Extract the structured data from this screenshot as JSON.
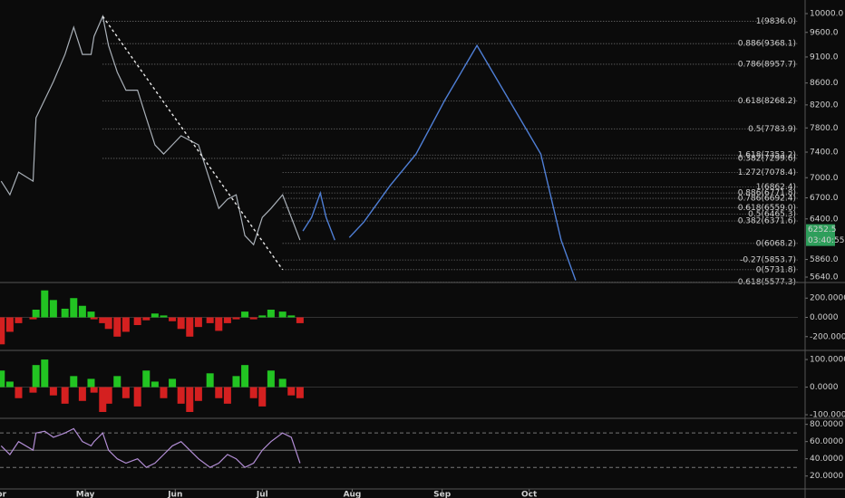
{
  "chart_data": [
    {
      "type": "line",
      "log": true,
      "ylim": [
        5574,
        10300
      ],
      "xlim": [
        0.6,
        275.6
      ],
      "yticks": [
        {
          "value": 10000,
          "label": "10000.0"
        },
        {
          "value": 9600,
          "label": "9600.0"
        },
        {
          "value": 9100,
          "label": "9100.0"
        },
        {
          "value": 8600,
          "label": "8600.0"
        },
        {
          "value": 8200,
          "label": "8200.0"
        },
        {
          "value": 7800,
          "label": "7800.0"
        },
        {
          "value": 7400,
          "label": "7400.0"
        },
        {
          "value": 7000,
          "label": "7000.0"
        },
        {
          "value": 6700,
          "label": "6700.0"
        },
        {
          "value": 6400,
          "label": "6400.0"
        },
        {
          "value": 5860,
          "label": "5860.0"
        },
        {
          "value": 5640,
          "label": "5640.0"
        }
      ],
      "series": [
        {
          "color": "#a9b0b8",
          "x": [
            1,
            4,
            7,
            12,
            13,
            16,
            19,
            23,
            26,
            29,
            32,
            33,
            36,
            38,
            41,
            44,
            48,
            51,
            54,
            57,
            60,
            63,
            66,
            69,
            73,
            76,
            79,
            82,
            85,
            88,
            91,
            94,
            98,
            101,
            104
          ],
          "values": [
            6947,
            6745,
            7085,
            6947,
            7974,
            8294,
            8626,
            9151,
            9708,
            9151,
            9151,
            9516,
            9941,
            9330,
            8806,
            8466,
            8466,
            7974,
            7517,
            7370,
            7517,
            7667,
            7592,
            7517,
            6947,
            6548,
            6680,
            6745,
            6172,
            6052,
            6421,
            6548,
            6745,
            6421,
            6112
          ]
        },
        {
          "color": "#e8e8e8",
          "dash": true,
          "x": [
            36,
            98
          ],
          "values": [
            9941,
            5731.8
          ]
        },
        {
          "color": "#4f7fd6",
          "x": [
            105,
            108,
            111,
            113,
            116,
            null,
            121,
            126,
            135,
            144,
            154,
            165,
            176,
            187,
            194,
            199
          ],
          "values": [
            6234,
            6421,
            6771,
            6421,
            6112,
            null,
            6147,
            6357,
            6878,
            7370,
            8294,
            9330,
            8294,
            7370,
            6112,
            5600
          ]
        }
      ],
      "fib_sets": [
        {
          "from": 36,
          "levels": [
            {
              "value": 9836.0,
              "label": "1(9836.0)",
              "color": "#ffffff"
            },
            {
              "value": 9368.1,
              "label": "0.886(9368.1)",
              "color": "#ffffff"
            },
            {
              "value": 8957.7,
              "label": "0.786(8957.7)",
              "color": "#9a9a9a"
            },
            {
              "value": 8268.2,
              "label": "0.618(8268.2)",
              "color": "#3cc8c8"
            },
            {
              "value": 7783.9,
              "label": "0.5(7783.9)",
              "color": "#ffffff"
            },
            {
              "value": 7299.6,
              "label": "0.382(7299.6)",
              "color": "#ffffff"
            }
          ]
        },
        {
          "from": 98,
          "levels": [
            {
              "value": 7353.2,
              "label": "1.618(7353.2)",
              "color": "#ffffff"
            },
            {
              "value": 7078.4,
              "label": "1.272(7078.4)",
              "color": "#ffffff"
            },
            {
              "value": 6862.4,
              "label": "1(6862.4)",
              "color": "#ffffff"
            },
            {
              "value": 6771.8,
              "label": "0.886(6771.8)",
              "color": "#ffffff"
            },
            {
              "value": 6692.4,
              "label": "0.786(6692.4)",
              "color": "#9a9a9a"
            },
            {
              "value": 6559.0,
              "label": "0.618(6559.0)",
              "color": "#3cc8c8"
            },
            {
              "value": 6465.3,
              "label": "0.5(6465.3)",
              "color": "#ffffff"
            },
            {
              "value": 6371.6,
              "label": "0.382(6371.6)",
              "color": "#ffffff"
            },
            {
              "value": 6068.2,
              "label": "0(6068.2)",
              "color": "#ffffff"
            },
            {
              "value": 5853.7,
              "label": "-0.27(5853.7)",
              "color": "#ffffff"
            },
            {
              "value": 5731.8,
              "label": "0(5731.8)",
              "color": "#ffffff"
            },
            {
              "value": 5577.3,
              "label": "-0.618(5577.3)",
              "color": "#ffffff"
            }
          ]
        }
      ],
      "price_tag": {
        "value": 6252.5,
        "countdown": "03:40:55",
        "color": "#2e9e5b"
      }
    },
    {
      "type": "histogram_osc",
      "ylim": [
        -343,
        362
      ],
      "xlim": [
        0.6,
        275.6
      ],
      "color_up": "#22c422",
      "color_down": "#d42020",
      "yticks": [
        {
          "value": 200,
          "label": "200.0000"
        },
        {
          "value": 0,
          "label": "0.0000"
        },
        {
          "value": -200,
          "label": "-200.0000"
        }
      ],
      "x": [
        1,
        4,
        7,
        12,
        13,
        16,
        19,
        23,
        26,
        29,
        32,
        33,
        36,
        38,
        41,
        44,
        48,
        51,
        54,
        57,
        60,
        63,
        66,
        69,
        73,
        76,
        79,
        82,
        85,
        88,
        91,
        94,
        98,
        101,
        104
      ],
      "values": [
        -280,
        -150,
        -60,
        -20,
        80,
        280,
        180,
        90,
        200,
        120,
        60,
        -20,
        -60,
        -120,
        -200,
        -150,
        -80,
        -30,
        40,
        20,
        -40,
        -120,
        -200,
        -100,
        -60,
        -140,
        -60,
        -20,
        60,
        -20,
        20,
        80,
        60,
        20,
        -60
      ]
    },
    {
      "type": "histogram_osc",
      "ylim": [
        -113,
        133
      ],
      "xlim": [
        0.6,
        275.6
      ],
      "color_up": "#22c422",
      "color_down": "#d42020",
      "yticks": [
        {
          "value": 100,
          "label": "100.0000"
        },
        {
          "value": 0,
          "label": "0.0000"
        },
        {
          "value": -100,
          "label": "-100.0000"
        }
      ],
      "x": [
        1,
        4,
        7,
        12,
        13,
        16,
        19,
        23,
        26,
        29,
        32,
        33,
        36,
        38,
        41,
        44,
        48,
        51,
        54,
        57,
        60,
        63,
        66,
        69,
        73,
        76,
        79,
        82,
        85,
        88,
        91,
        94,
        98,
        101,
        104
      ],
      "values": [
        60,
        20,
        -40,
        -20,
        80,
        100,
        -30,
        -60,
        40,
        -50,
        30,
        -20,
        -90,
        -60,
        40,
        -40,
        -70,
        60,
        20,
        -40,
        30,
        -60,
        -90,
        -50,
        50,
        -40,
        -60,
        40,
        80,
        -40,
        -70,
        60,
        30,
        -30,
        -40
      ]
    },
    {
      "type": "osc_line",
      "ylim": [
        5,
        87
      ],
      "xlim": [
        0.6,
        275.6
      ],
      "color": "#b38ed6",
      "levels": [
        70,
        50,
        30
      ],
      "yticks": [
        {
          "value": 80,
          "label": "80.0000"
        },
        {
          "value": 60,
          "label": "60.0000"
        },
        {
          "value": 40,
          "label": "40.0000"
        },
        {
          "value": 20,
          "label": "20.0000"
        }
      ],
      "x": [
        1,
        4,
        7,
        12,
        13,
        16,
        19,
        23,
        26,
        29,
        32,
        33,
        36,
        38,
        41,
        44,
        48,
        51,
        54,
        57,
        60,
        63,
        66,
        69,
        73,
        76,
        79,
        82,
        85,
        88,
        91,
        94,
        98,
        101,
        104
      ],
      "values": [
        55,
        45,
        60,
        50,
        70,
        72,
        65,
        70,
        75,
        60,
        55,
        60,
        70,
        50,
        40,
        35,
        40,
        30,
        35,
        45,
        55,
        60,
        50,
        40,
        30,
        35,
        45,
        40,
        30,
        35,
        50,
        60,
        70,
        65,
        35
      ],
      "xticks": [
        {
          "value": 0,
          "label": "Apr"
        },
        {
          "value": 30,
          "label": "May"
        },
        {
          "value": 61,
          "label": "Jun"
        },
        {
          "value": 91,
          "label": "Jul"
        },
        {
          "value": 122,
          "label": "Aug"
        },
        {
          "value": 153,
          "label": "Sep"
        },
        {
          "value": 183,
          "label": "Oct"
        }
      ]
    }
  ]
}
